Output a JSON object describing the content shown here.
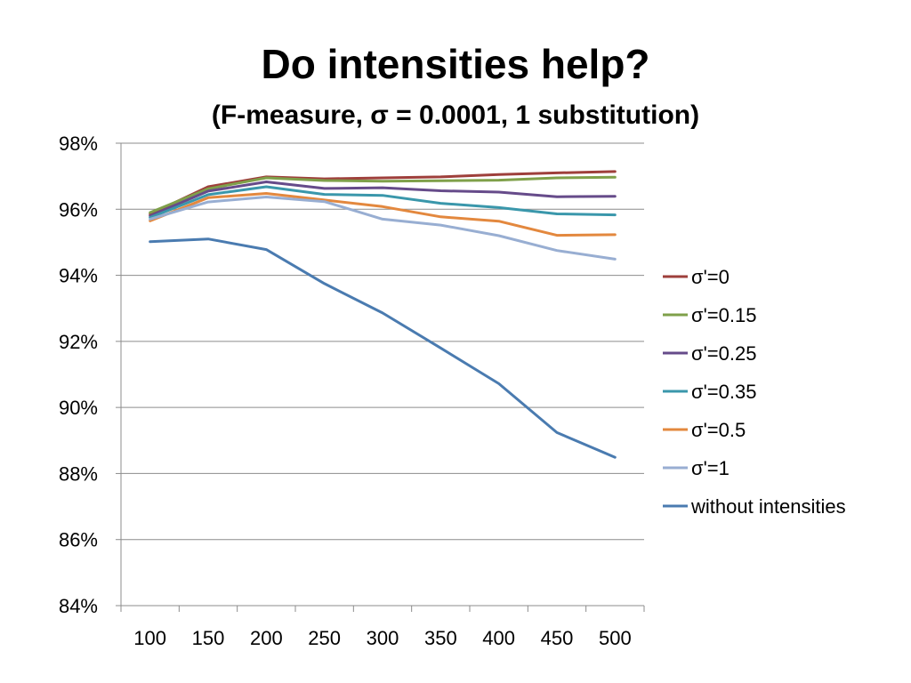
{
  "slide": {
    "title": "Do intensities help?",
    "subtitle": "(F-measure, σ = 0.0001, 1 substitution)"
  },
  "chart_data": {
    "type": "line",
    "x": [
      100,
      150,
      200,
      250,
      300,
      350,
      400,
      450,
      500
    ],
    "x_tick_labels": [
      "100",
      "150",
      "200",
      "250",
      "300",
      "350",
      "400",
      "450",
      "500"
    ],
    "ylim": [
      84,
      98
    ],
    "y_ticks": [
      84,
      86,
      88,
      90,
      92,
      94,
      96,
      98
    ],
    "y_tick_labels": [
      "84%",
      "86%",
      "88%",
      "90%",
      "92%",
      "94%",
      "96%",
      "98%"
    ],
    "grid": "horizontal",
    "legend_position": "right",
    "series": [
      {
        "name": "σ'=0",
        "color": "#9e3f3b",
        "values": [
          95.85,
          96.68,
          96.98,
          96.92,
          96.95,
          96.98,
          97.05,
          97.1,
          97.14
        ]
      },
      {
        "name": "σ'=0.15",
        "color": "#7fa04a",
        "values": [
          95.9,
          96.62,
          96.95,
          96.87,
          96.85,
          96.86,
          96.88,
          96.95,
          96.97
        ]
      },
      {
        "name": "σ'=0.25",
        "color": "#664b8a",
        "values": [
          95.8,
          96.55,
          96.83,
          96.63,
          96.65,
          96.56,
          96.52,
          96.38,
          96.39
        ]
      },
      {
        "name": "σ'=0.35",
        "color": "#3a97ab",
        "values": [
          95.75,
          96.44,
          96.68,
          96.45,
          96.42,
          96.18,
          96.05,
          95.86,
          95.83
        ]
      },
      {
        "name": "σ'=0.5",
        "color": "#e3883e",
        "values": [
          95.65,
          96.35,
          96.48,
          96.28,
          96.08,
          95.77,
          95.64,
          95.21,
          95.23
        ]
      },
      {
        "name": "σ'=1",
        "color": "#98aed2",
        "values": [
          95.7,
          96.22,
          96.37,
          96.23,
          95.7,
          95.52,
          95.2,
          94.75,
          94.49
        ]
      },
      {
        "name": "without intensities",
        "color": "#4a7bb0",
        "values": [
          95.02,
          95.1,
          94.78,
          93.75,
          92.86,
          91.8,
          90.72,
          89.24,
          88.49
        ]
      }
    ]
  }
}
